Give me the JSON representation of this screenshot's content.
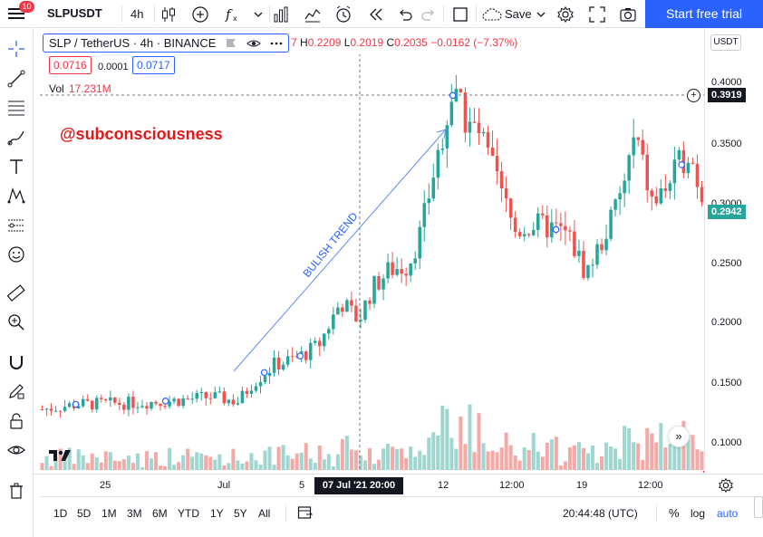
{
  "topbar": {
    "menu_badge": "10",
    "symbol": "SLPUSDT",
    "interval": "4h",
    "save_label": "Save",
    "trial_button": "Start free trial"
  },
  "legend": {
    "title": "SLP / TetherUS · 4h · BINANCE",
    "ohlc_prefix": "7",
    "high_key": "H",
    "high": "0.2209",
    "low_key": "L",
    "low": "0.2019",
    "close_key": "C",
    "close": "0.2035",
    "change": "−0.0162 (−7.37%)",
    "bid": "0.0716",
    "spread": "0.0001",
    "ask": "0.0717",
    "vol_label": "Vol",
    "vol_value": "17.231M"
  },
  "watermark": "@subconsciousness",
  "annotation": "BULISH TREND",
  "price_axis": {
    "currency": "USDT",
    "ticks": [
      "0.4000",
      "0.3500",
      "0.3000",
      "0.2500",
      "0.2000",
      "0.1500",
      "0.1000"
    ],
    "high_tag": "0.3919",
    "last_tag": "0.2942"
  },
  "time_axis": {
    "labels": [
      "25",
      "Jul",
      "5",
      "12",
      "12:00",
      "19",
      "12:00"
    ],
    "crosshair_date": "07 Jul '21   20:00"
  },
  "bottombar": {
    "ranges": [
      "1D",
      "5D",
      "1M",
      "3M",
      "6M",
      "YTD",
      "1Y",
      "5Y",
      "All"
    ],
    "clock": "20:44:48 (UTC)",
    "percent": "%",
    "log": "log",
    "auto": "auto"
  },
  "colors": {
    "up": "#26a69a",
    "down": "#ef5350",
    "accent": "#2962ff",
    "volume_up": "#9fd6cf",
    "volume_down": "#f4a9a6"
  },
  "chart_data": {
    "type": "candlestick",
    "symbol": "SLP / TetherUS",
    "interval": "4h",
    "exchange": "BINANCE",
    "ylim": [
      0.0745,
      0.4043
    ],
    "price_ticks": [
      0.1,
      0.15,
      0.2,
      0.25,
      0.3,
      0.35,
      0.4
    ],
    "period": "from before 25 Jun 2021 to after 19 Jul 2021, 4h bars",
    "close_path_anchors": [
      [
        0.0,
        0.125
      ],
      [
        0.08,
        0.129
      ],
      [
        0.2,
        0.13
      ],
      [
        0.3,
        0.132
      ],
      [
        0.38,
        0.135
      ],
      [
        0.44,
        0.131
      ],
      [
        0.47,
        0.145
      ],
      [
        0.52,
        0.16
      ],
      [
        0.57,
        0.165
      ],
      [
        0.62,
        0.175
      ],
      [
        0.67,
        0.21
      ],
      [
        0.71,
        0.195
      ],
      [
        0.74,
        0.22
      ],
      [
        0.78,
        0.235
      ],
      [
        0.82,
        0.238
      ],
      [
        0.85,
        0.265
      ],
      [
        0.89,
        0.33
      ],
      [
        0.92,
        0.372
      ],
      [
        0.95,
        0.353
      ],
      [
        0.98,
        0.342
      ],
      [
        1.02,
        0.305
      ],
      [
        1.06,
        0.265
      ],
      [
        1.1,
        0.27
      ],
      [
        1.14,
        0.268
      ],
      [
        1.18,
        0.262
      ],
      [
        1.22,
        0.232
      ],
      [
        1.26,
        0.26
      ],
      [
        1.3,
        0.295
      ],
      [
        1.33,
        0.34
      ],
      [
        1.37,
        0.285
      ],
      [
        1.41,
        0.305
      ],
      [
        1.45,
        0.33
      ],
      [
        1.48,
        0.294
      ]
    ],
    "last_price": 0.2942,
    "session_high": 0.3919,
    "volume_last": "17.231M"
  }
}
